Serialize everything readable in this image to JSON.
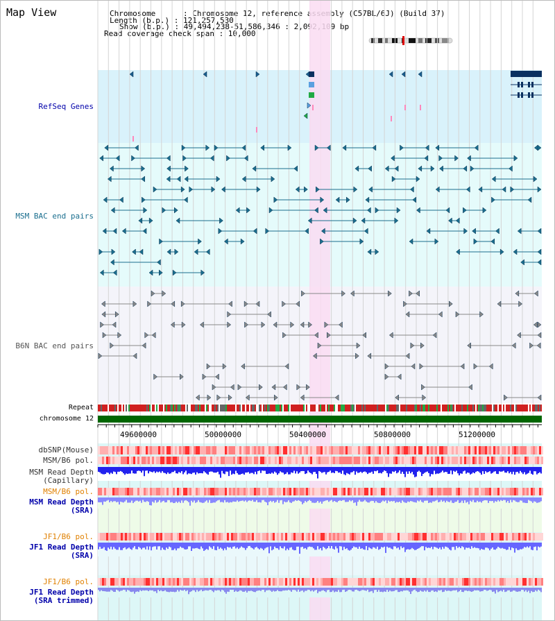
{
  "title": "Map View",
  "info": {
    "chromosome": "Chromosome      : Chromosome 12, reference assembly (C57BL/6J) (Build 37)",
    "length": "Length (b.p.) : 121,257,530",
    "show": "Show (b.p.) : 49,494,238-51,586,346 : 2,092,109 bp",
    "coverage": "Read coverage check span : 10,000"
  },
  "tracks": {
    "refseq": "RefSeq Genes",
    "msm_bac": "MSM BAC end pairs",
    "b6n_bac": "B6N BAC end pairs",
    "repeat": "Repeat",
    "chromosome": "chromosome 12",
    "dbsnp": "dbSNP(Mouse)",
    "msm_b6_pol_1": "MSM/B6 pol.",
    "msm_depth_cap_1": "MSM Read Depth",
    "msm_depth_cap_2": "(Capillary)",
    "msm_b6_pol_2": "MSM/B6 pol.",
    "msm_depth_sra_1": "MSM Read Depth",
    "msm_depth_sra_2": "(SRA)",
    "jf1_b6_pol_1": "JF1/B6 pol.",
    "jf1_depth_sra_1": "JF1 Read Depth",
    "jf1_depth_sra_2": "(SRA)",
    "jf1_b6_pol_2": "JF1/B6 pol.",
    "jf1_depth_trim_1": "JF1 Read Depth",
    "jf1_depth_trim_2": "(SRA trimmed)"
  },
  "axis": {
    "ticks": [
      "49600000",
      "50000000",
      "50400000",
      "50800000",
      "51200000"
    ]
  },
  "colors": {
    "refseq_bg": "#d9f2fb",
    "msm_bg": "#e5fbfb",
    "b6n_bg": "#f4f4fa",
    "highlight": "#fadcf2",
    "chromosome": "#006600",
    "msm_feature": "#1a6e8e",
    "b6n_feature": "#777777",
    "depth_blue": "#2222ee",
    "depth_light": "#7777ff",
    "label_blue": "#0000aa",
    "label_orange": "#e08000",
    "label_teal": "#1a6e8e"
  }
}
